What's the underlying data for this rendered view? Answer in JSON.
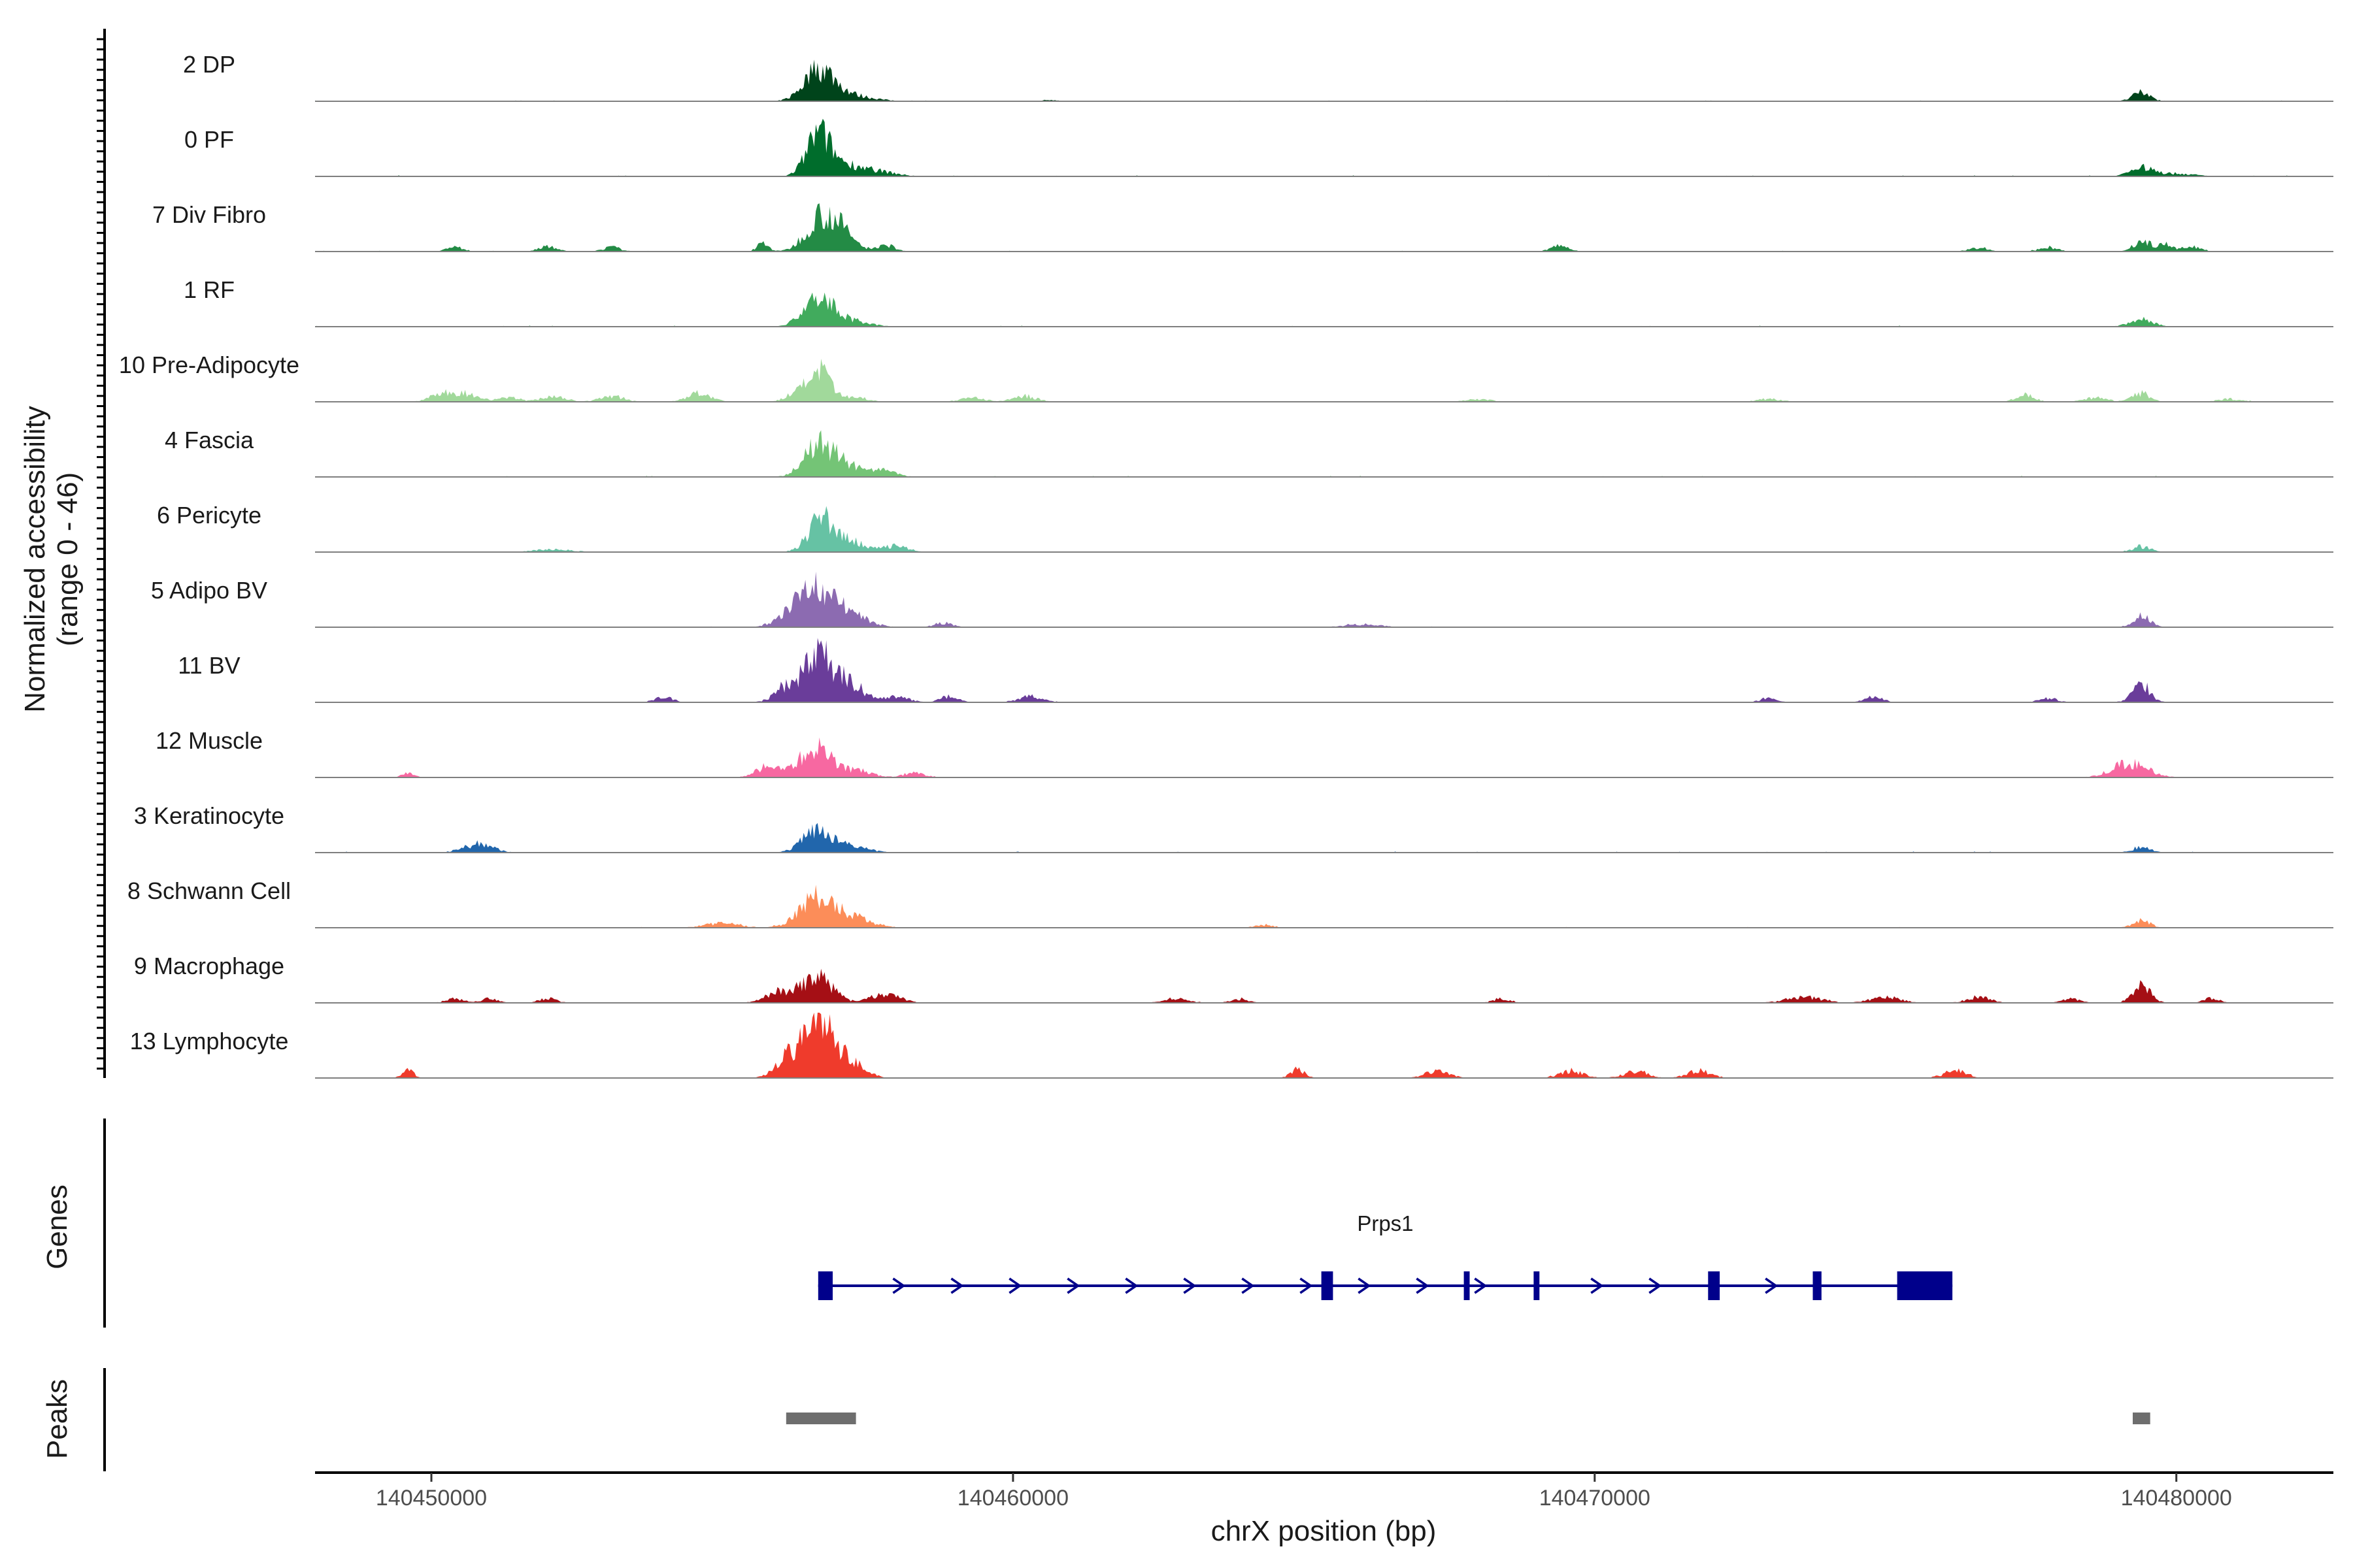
{
  "chart_data": {
    "type": "area",
    "title": "",
    "chromosome": "chrX",
    "xlabel": "chrX position (bp)",
    "ylabel_line1": "Normalized accessibility",
    "ylabel_line2": "(range 0 - 46)",
    "y_range": [
      0,
      46
    ],
    "x_range": [
      140448000,
      140482700
    ],
    "x_ticks": [
      140450000,
      140460000,
      140470000,
      140480000
    ],
    "x_tick_labels": [
      "140450000",
      "140460000",
      "140470000",
      "140480000"
    ],
    "genes_label": "Genes",
    "peaks_label": "Peaks",
    "tracks": [
      {
        "name": "2 DP",
        "color": "#00441b",
        "peaks": [
          [
            140456650,
            20,
            250
          ],
          [
            140456950,
            5,
            300
          ],
          [
            140457450,
            2,
            300
          ],
          [
            140479400,
            6,
            150
          ],
          [
            140460650,
            1,
            150
          ]
        ],
        "noise": 0.6
      },
      {
        "name": "0 PF",
        "color": "#006d2c",
        "peaks": [
          [
            140456650,
            28,
            200
          ],
          [
            140457100,
            8,
            300
          ],
          [
            140457700,
            3,
            300
          ],
          [
            140479400,
            6,
            200
          ],
          [
            140480000,
            2,
            300
          ]
        ],
        "noise": 0.8
      },
      {
        "name": "7 Div Fibro",
        "color": "#238b45",
        "peaks": [
          [
            140456700,
            25,
            250
          ],
          [
            140457100,
            10,
            200
          ],
          [
            140457800,
            5,
            150
          ],
          [
            140455700,
            6,
            100
          ],
          [
            140452000,
            4,
            150
          ],
          [
            140453100,
            3,
            150
          ],
          [
            140469400,
            4,
            150
          ],
          [
            140479400,
            7,
            150
          ],
          [
            140479800,
            5,
            150
          ],
          [
            140480300,
            3,
            150
          ],
          [
            140450400,
            3,
            150
          ],
          [
            140476600,
            3,
            150
          ],
          [
            140477800,
            3,
            150
          ]
        ],
        "noise": 0.6
      },
      {
        "name": "1 RF",
        "color": "#41ab5d",
        "peaks": [
          [
            140456650,
            20,
            250
          ],
          [
            140457200,
            4,
            300
          ],
          [
            140479400,
            5,
            200
          ]
        ],
        "noise": 0.8
      },
      {
        "name": "10 Pre-Adipocyte",
        "color": "#a1d99b",
        "peaks": [
          [
            140456650,
            22,
            200
          ],
          [
            140450200,
            6,
            200
          ],
          [
            140450600,
            5,
            200
          ],
          [
            140451300,
            3,
            200
          ],
          [
            140452100,
            4,
            200
          ],
          [
            140453100,
            4,
            200
          ],
          [
            140454600,
            6,
            200
          ],
          [
            140456200,
            4,
            150
          ],
          [
            140457300,
            3,
            200
          ],
          [
            140460200,
            4,
            200
          ],
          [
            140459300,
            3,
            200
          ],
          [
            140468000,
            2,
            200
          ],
          [
            140473000,
            2,
            200
          ],
          [
            140477400,
            5,
            150
          ],
          [
            140479400,
            6,
            150
          ],
          [
            140478600,
            3,
            200
          ],
          [
            140480900,
            2,
            200
          ]
        ],
        "noise": 0.5
      },
      {
        "name": "4 Fascia",
        "color": "#74c476",
        "peaks": [
          [
            140456650,
            20,
            250
          ],
          [
            140457100,
            8,
            300
          ],
          [
            140457800,
            4,
            200
          ]
        ],
        "noise": 0.8
      },
      {
        "name": "6 Pericyte",
        "color": "#66c2a4",
        "peaks": [
          [
            140456700,
            22,
            220
          ],
          [
            140457200,
            7,
            300
          ],
          [
            140458000,
            4,
            200
          ],
          [
            140452100,
            2,
            300
          ],
          [
            140479400,
            4,
            150
          ]
        ],
        "noise": 0.5
      },
      {
        "name": "5 Adipo BV",
        "color": "#8c6bb1",
        "peaks": [
          [
            140456650,
            24,
            300
          ],
          [
            140456200,
            10,
            250
          ],
          [
            140457200,
            8,
            300
          ],
          [
            140458800,
            3,
            150
          ],
          [
            140479400,
            8,
            150
          ],
          [
            140466000,
            2,
            300
          ]
        ],
        "noise": 0.6
      },
      {
        "name": "11 BV",
        "color": "#6a3d9a",
        "peaks": [
          [
            140456650,
            32,
            250
          ],
          [
            140456100,
            10,
            200
          ],
          [
            140457200,
            12,
            250
          ],
          [
            140458000,
            4,
            200
          ],
          [
            140454000,
            4,
            150
          ],
          [
            140458900,
            4,
            150
          ],
          [
            140460300,
            4,
            200
          ],
          [
            140473000,
            3,
            150
          ],
          [
            140474800,
            4,
            150
          ],
          [
            140477800,
            3,
            150
          ],
          [
            140479400,
            12,
            150
          ]
        ],
        "noise": 0.4
      },
      {
        "name": "12 Muscle",
        "color": "#f768a1",
        "peaks": [
          [
            140456600,
            22,
            250
          ],
          [
            140455800,
            8,
            200
          ],
          [
            140457300,
            5,
            250
          ],
          [
            140458300,
            3,
            200
          ],
          [
            140449600,
            3,
            100
          ],
          [
            140479200,
            10,
            300
          ]
        ],
        "noise": 0.4
      },
      {
        "name": "3 Keratinocyte",
        "color": "#2166ac",
        "peaks": [
          [
            140456650,
            16,
            250
          ],
          [
            140450800,
            6,
            250
          ],
          [
            140457200,
            4,
            300
          ],
          [
            140479400,
            4,
            150
          ]
        ],
        "noise": 0.8
      },
      {
        "name": "8 Schwann Cell",
        "color": "#fc8d59",
        "peaks": [
          [
            140456650,
            22,
            300
          ],
          [
            140457300,
            6,
            300
          ],
          [
            140455000,
            3,
            300
          ],
          [
            140464300,
            2,
            150
          ],
          [
            140479400,
            5,
            150
          ]
        ],
        "noise": 0.6
      },
      {
        "name": "9 Macrophage",
        "color": "#a50f15",
        "peaks": [
          [
            140456650,
            18,
            250
          ],
          [
            140456000,
            8,
            250
          ],
          [
            140457800,
            6,
            250
          ],
          [
            140450400,
            3,
            150
          ],
          [
            140451000,
            3,
            150
          ],
          [
            140452000,
            3,
            150
          ],
          [
            140462800,
            3,
            200
          ],
          [
            140463900,
            3,
            150
          ],
          [
            140468400,
            3,
            150
          ],
          [
            140473600,
            4,
            300
          ],
          [
            140475000,
            4,
            250
          ],
          [
            140476600,
            4,
            200
          ],
          [
            140479400,
            12,
            150
          ],
          [
            140478200,
            3,
            150
          ],
          [
            140480600,
            3,
            150
          ]
        ],
        "noise": 0.4
      },
      {
        "name": "13 Lymphocyte",
        "color": "#ef3b2c",
        "peaks": [
          [
            140456650,
            46,
            250
          ],
          [
            140456100,
            12,
            200
          ],
          [
            140457200,
            10,
            250
          ],
          [
            140449600,
            5,
            100
          ],
          [
            140464900,
            6,
            120
          ],
          [
            140467300,
            5,
            200
          ],
          [
            140469600,
            5,
            200
          ],
          [
            140470700,
            5,
            200
          ],
          [
            140471800,
            5,
            200
          ],
          [
            140476200,
            5,
            200
          ]
        ],
        "noise": 0.3
      }
    ],
    "genes": [
      {
        "name": "Prps1",
        "strand": "+",
        "color": "#00008b",
        "start": 140456650,
        "end": 140476150,
        "exons": [
          [
            140456650,
            140456900
          ],
          [
            140465300,
            140465500
          ],
          [
            140467750,
            140467850
          ],
          [
            140468950,
            140469050
          ],
          [
            140471950,
            140472150
          ],
          [
            140473750,
            140473900
          ],
          [
            140475200,
            140476150
          ]
        ]
      }
    ],
    "peaks": [
      {
        "start": 140456100,
        "end": 140457300
      },
      {
        "start": 140479250,
        "end": 140479550
      }
    ],
    "peak_color": "#6e6e6e"
  }
}
